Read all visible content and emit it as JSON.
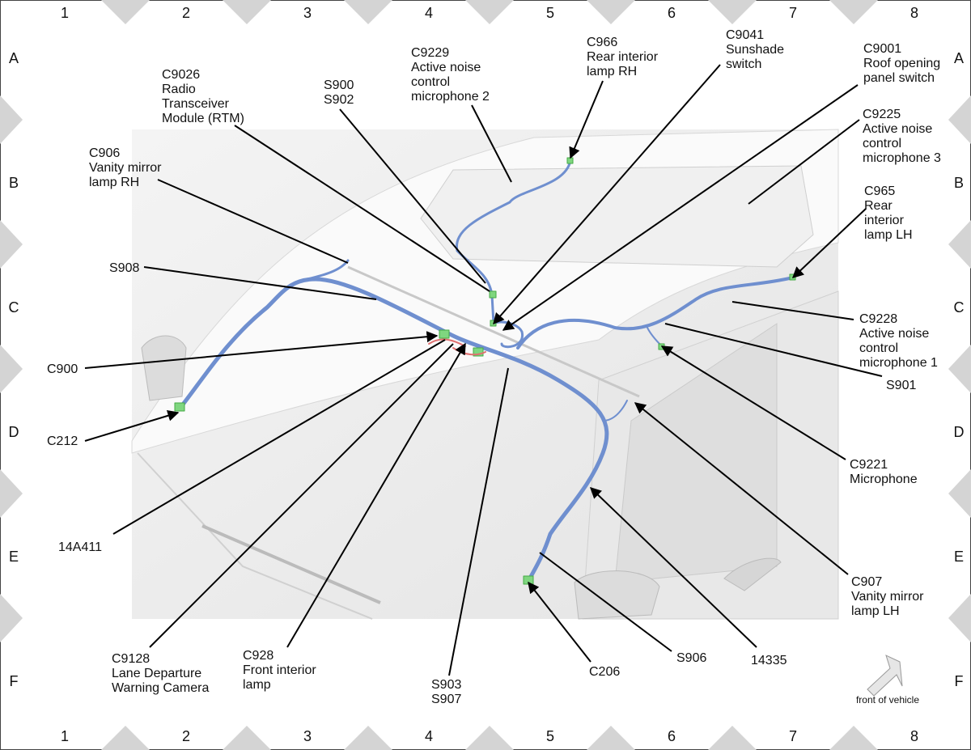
{
  "grid": {
    "columns": [
      "1",
      "2",
      "3",
      "4",
      "5",
      "6",
      "7",
      "8"
    ],
    "rows": [
      "A",
      "B",
      "C",
      "D",
      "E",
      "F"
    ]
  },
  "callouts": [
    {
      "lines": [
        "C9026",
        "Radio",
        "Transceiver",
        "Module (RTM)"
      ]
    },
    {
      "lines": [
        "C9229",
        "Active noise",
        "control",
        "microphone 2"
      ]
    },
    {
      "lines": [
        "C966",
        "Rear interior",
        "lamp RH"
      ]
    },
    {
      "lines": [
        "C9041",
        "Sunshade",
        "switch"
      ]
    },
    {
      "lines": [
        "C9001",
        "Roof opening",
        "panel switch"
      ]
    },
    {
      "lines": [
        "S900",
        "S902"
      ]
    },
    {
      "lines": [
        "C906",
        "Vanity mirror",
        "lamp RH"
      ]
    },
    {
      "lines": [
        "C9225",
        "Active noise",
        "control",
        "microphone 3"
      ]
    },
    {
      "lines": [
        "C965",
        "Rear",
        "interior",
        "lamp LH"
      ]
    },
    {
      "lines": [
        "S908"
      ]
    },
    {
      "lines": [
        "C9228",
        "Active noise",
        "control",
        "microphone 1"
      ]
    },
    {
      "lines": [
        "C900"
      ]
    },
    {
      "lines": [
        "S901"
      ]
    },
    {
      "lines": [
        "C212"
      ]
    },
    {
      "lines": [
        "C9221",
        "Microphone"
      ]
    },
    {
      "lines": [
        "14A411"
      ]
    },
    {
      "lines": [
        "C907",
        "Vanity mirror",
        "lamp LH"
      ]
    },
    {
      "lines": [
        "C9128",
        "Lane Departure",
        "Warning Camera"
      ]
    },
    {
      "lines": [
        "C928",
        "Front interior",
        "lamp"
      ]
    },
    {
      "lines": [
        "S903",
        "S907"
      ]
    },
    {
      "lines": [
        "C206"
      ]
    },
    {
      "lines": [
        "S906"
      ]
    },
    {
      "lines": [
        "14335"
      ]
    }
  ],
  "orientation_note": "front of vehicle"
}
